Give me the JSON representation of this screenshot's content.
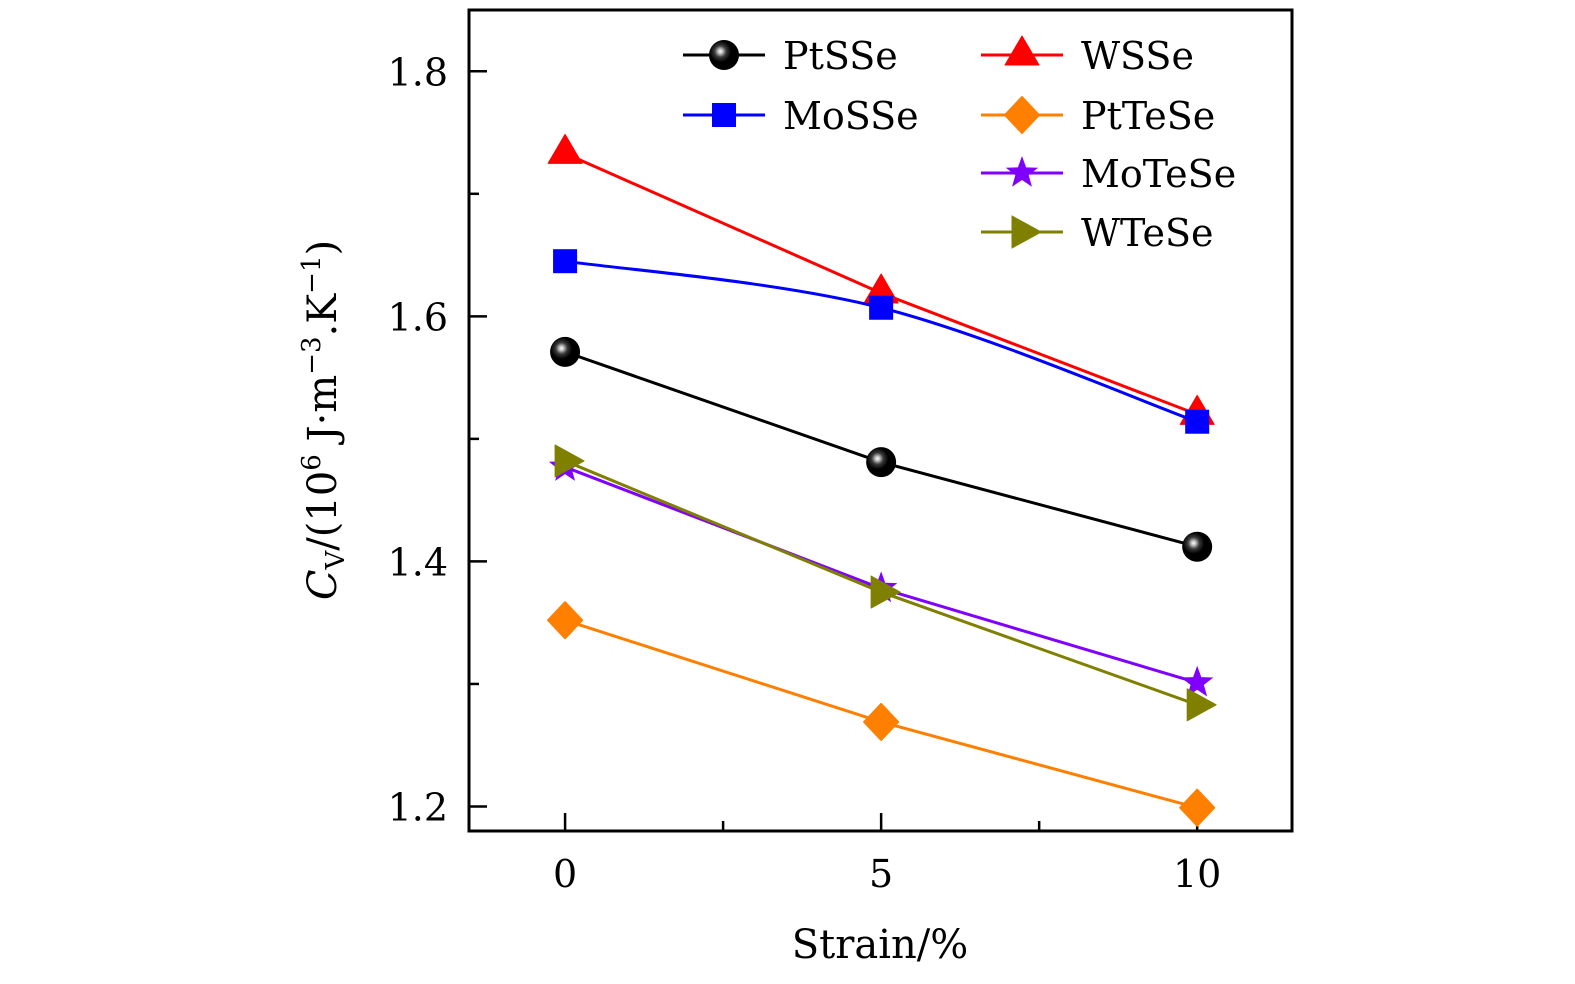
{
  "chart_data": {
    "type": "line",
    "title": "",
    "xlabel": "Strain/%",
    "ylabel": {
      "symbol": "C",
      "subscript": "V",
      "rest_prefix": "/(10",
      "exp1": "6",
      "rest_mid": " J·m",
      "exp2": "−3",
      "rest_mid2": ".K",
      "exp3": "−1",
      "rest_suffix": ")"
    },
    "ylabel_plain": "C_V/(10^6 J·m^-3.K^-1)",
    "x": [
      0,
      5,
      10
    ],
    "xlim": [
      -1.52,
      11.5
    ],
    "ylim": [
      1.18,
      1.85
    ],
    "xticks_major": [
      0,
      5,
      10
    ],
    "xtick_labels": [
      "0",
      "5",
      "10"
    ],
    "xticks_minor": [
      2.5,
      7.5
    ],
    "yticks_major": [
      1.2,
      1.4,
      1.6,
      1.8
    ],
    "ytick_labels": [
      "1.2",
      "1.4",
      "1.6",
      "1.8"
    ],
    "yticks_minor": [
      1.3,
      1.5,
      1.7
    ],
    "grid": false,
    "legend_position": "top-right",
    "series": [
      {
        "name": "PtSSe",
        "color": "#000000",
        "marker": "sphere",
        "values": [
          1.571,
          1.481,
          1.412
        ],
        "smooth": false
      },
      {
        "name": "WSSe",
        "color": "#ff0000",
        "marker": "triangle-up",
        "values": [
          1.733,
          1.619,
          1.52
        ],
        "smooth": false
      },
      {
        "name": "MoSSe",
        "color": "#0000ff",
        "marker": "square",
        "values": [
          1.645,
          1.607,
          1.514
        ],
        "smooth": true
      },
      {
        "name": "PtTeSe",
        "color": "#ff8000",
        "marker": "diamond",
        "values": [
          1.352,
          1.269,
          1.199
        ],
        "smooth": false
      },
      {
        "name": "MoTeSe",
        "color": "#8000ff",
        "marker": "star",
        "values": [
          1.477,
          1.378,
          1.301
        ],
        "smooth": false
      },
      {
        "name": "WTeSe",
        "color": "#808000",
        "marker": "triangle-right",
        "values": [
          1.482,
          1.375,
          1.283
        ],
        "smooth": false
      }
    ]
  }
}
